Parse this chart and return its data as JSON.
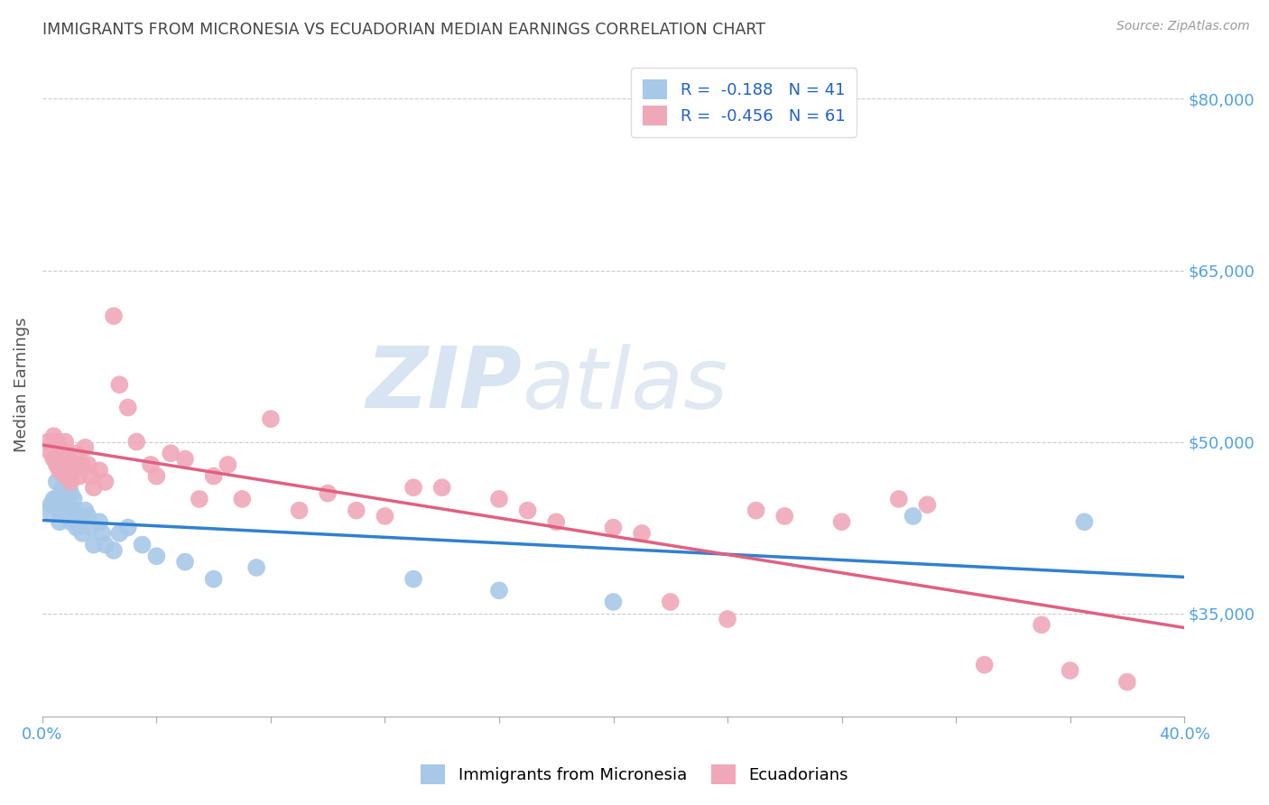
{
  "title": "IMMIGRANTS FROM MICRONESIA VS ECUADORIAN MEDIAN EARNINGS CORRELATION CHART",
  "source": "Source: ZipAtlas.com",
  "ylabel": "Median Earnings",
  "y_ticks": [
    35000,
    50000,
    65000,
    80000
  ],
  "y_tick_labels": [
    "$35,000",
    "$50,000",
    "$65,000",
    "$80,000"
  ],
  "x_min": 0.0,
  "x_max": 0.4,
  "y_min": 26000,
  "y_max": 84000,
  "legend_blue_r": "R =  -0.188",
  "legend_blue_n": "N = 41",
  "legend_pink_r": "R =  -0.456",
  "legend_pink_n": "N = 61",
  "blue_color": "#a8c8e8",
  "pink_color": "#f0a8b8",
  "blue_line_color": "#3080d0",
  "pink_line_color": "#e06080",
  "legend_text_color": "#2060c8",
  "axis_label_color": "#50a0e8",
  "title_color": "#444444",
  "watermark_color": "#d0e4f4",
  "background_color": "#ffffff",
  "blue_scatter_x": [
    0.002,
    0.003,
    0.004,
    0.005,
    0.005,
    0.006,
    0.006,
    0.007,
    0.007,
    0.008,
    0.008,
    0.009,
    0.009,
    0.01,
    0.01,
    0.011,
    0.011,
    0.012,
    0.012,
    0.013,
    0.014,
    0.015,
    0.016,
    0.017,
    0.018,
    0.02,
    0.021,
    0.022,
    0.025,
    0.027,
    0.03,
    0.035,
    0.04,
    0.05,
    0.06,
    0.075,
    0.13,
    0.16,
    0.2,
    0.305,
    0.365
  ],
  "blue_scatter_y": [
    44000,
    44500,
    45000,
    46500,
    45000,
    44000,
    43000,
    46000,
    44500,
    45000,
    44000,
    46000,
    43500,
    45500,
    43000,
    45000,
    44000,
    43500,
    42500,
    43000,
    42000,
    44000,
    43500,
    42500,
    41000,
    43000,
    42000,
    41000,
    40500,
    42000,
    42500,
    41000,
    40000,
    39500,
    38000,
    39000,
    38000,
    37000,
    36000,
    43500,
    43000
  ],
  "pink_scatter_x": [
    0.002,
    0.003,
    0.004,
    0.004,
    0.005,
    0.005,
    0.006,
    0.006,
    0.007,
    0.007,
    0.008,
    0.008,
    0.009,
    0.009,
    0.01,
    0.01,
    0.011,
    0.012,
    0.013,
    0.014,
    0.015,
    0.016,
    0.017,
    0.018,
    0.02,
    0.022,
    0.025,
    0.027,
    0.03,
    0.033,
    0.038,
    0.04,
    0.045,
    0.05,
    0.055,
    0.06,
    0.065,
    0.07,
    0.08,
    0.09,
    0.1,
    0.11,
    0.12,
    0.13,
    0.14,
    0.16,
    0.17,
    0.18,
    0.2,
    0.21,
    0.22,
    0.24,
    0.25,
    0.26,
    0.28,
    0.3,
    0.31,
    0.33,
    0.35,
    0.36,
    0.38
  ],
  "pink_scatter_y": [
    50000,
    49000,
    50500,
    48500,
    50000,
    48000,
    49500,
    47500,
    49000,
    48000,
    50000,
    47000,
    49000,
    48500,
    48000,
    46500,
    47500,
    49000,
    47000,
    48000,
    49500,
    48000,
    47000,
    46000,
    47500,
    46500,
    61000,
    55000,
    53000,
    50000,
    48000,
    47000,
    49000,
    48500,
    45000,
    47000,
    48000,
    45000,
    52000,
    44000,
    45500,
    44000,
    43500,
    46000,
    46000,
    45000,
    44000,
    43000,
    42500,
    42000,
    36000,
    34500,
    44000,
    43500,
    43000,
    45000,
    44500,
    30500,
    34000,
    30000,
    29000
  ]
}
